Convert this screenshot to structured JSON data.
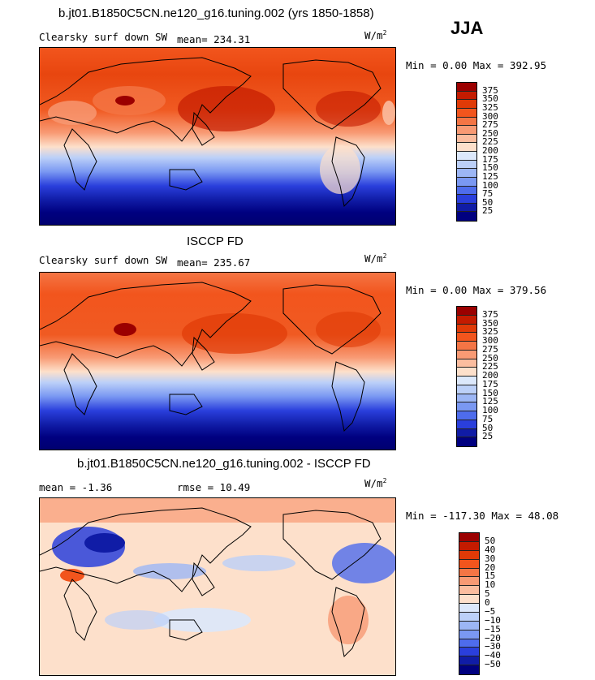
{
  "season": "JJA",
  "chart_data": [
    {
      "type": "heatmap",
      "title": "b.jt01.B1850C5CN.ne120_g16.tuning.002 (yrs 1850-1858)",
      "field": "Clearsky surf down SW",
      "mean_label": "mean= 234.31",
      "units": "W/m",
      "units_sup": "2",
      "minmax": "Min =   0.00 Max = 392.95",
      "levels": [
        "375",
        "350",
        "325",
        "300",
        "275",
        "250",
        "225",
        "200",
        "175",
        "150",
        "125",
        "100",
        "75",
        "50",
        "25"
      ],
      "palette": [
        "#9b0000",
        "#c41b00",
        "#e03a07",
        "#f2551d",
        "#f47545",
        "#f89a74",
        "#fbbd9f",
        "#fde0cb",
        "#dce8fb",
        "#bcd0f8",
        "#9cb6f5",
        "#7a98f2",
        "#4e6cec",
        "#2a3fdc",
        "#101ca6",
        "#000080"
      ]
    },
    {
      "type": "heatmap",
      "title": "ISCCP FD",
      "field": "Clearsky surf down SW",
      "mean_label": "mean= 235.67",
      "units": "W/m",
      "units_sup": "2",
      "minmax": "Min =   0.00 Max = 379.56",
      "levels": [
        "375",
        "350",
        "325",
        "300",
        "275",
        "250",
        "225",
        "200",
        "175",
        "150",
        "125",
        "100",
        "75",
        "50",
        "25"
      ],
      "palette": [
        "#9b0000",
        "#c41b00",
        "#e03a07",
        "#f2551d",
        "#f47545",
        "#f89a74",
        "#fbbd9f",
        "#fde0cb",
        "#dce8fb",
        "#bcd0f8",
        "#9cb6f5",
        "#7a98f2",
        "#4e6cec",
        "#2a3fdc",
        "#101ca6",
        "#000080"
      ]
    },
    {
      "type": "heatmap",
      "title": "b.jt01.B1850C5CN.ne120_g16.tuning.002 - ISCCP FD",
      "mean_label": "mean =   -1.36",
      "rmse_label": "rmse =   10.49",
      "units": "W/m",
      "units_sup": "2",
      "minmax": "Min = -117.30 Max =  48.08",
      "levels": [
        "50",
        "40",
        "30",
        "20",
        "15",
        "10",
        "5",
        "0",
        "−5",
        "−10",
        "−15",
        "−20",
        "−30",
        "−40",
        "−50"
      ],
      "palette": [
        "#9b0000",
        "#c41b00",
        "#e03a07",
        "#f2551d",
        "#f47545",
        "#f89a74",
        "#fbbd9f",
        "#fde0cb",
        "#dce8fb",
        "#bcd0f8",
        "#9cb6f5",
        "#7a98f2",
        "#4e6cec",
        "#2a3fdc",
        "#101ca6",
        "#000080"
      ]
    }
  ]
}
